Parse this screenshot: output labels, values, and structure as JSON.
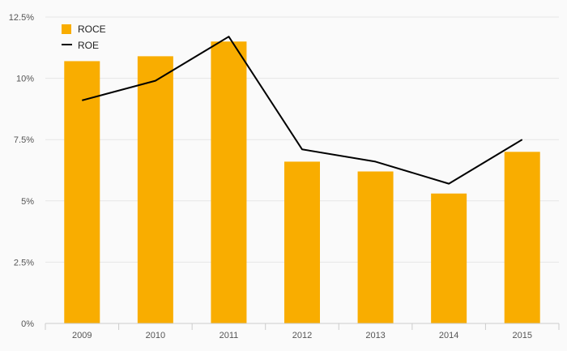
{
  "chart_data": {
    "type": "bar",
    "categories": [
      "2009",
      "2010",
      "2011",
      "2012",
      "2013",
      "2014",
      "2015"
    ],
    "series": [
      {
        "name": "ROCE",
        "kind": "bar",
        "color": "#f9ad00",
        "values": [
          10.7,
          10.9,
          11.5,
          6.6,
          6.2,
          5.3,
          7.0
        ]
      },
      {
        "name": "ROE",
        "kind": "line",
        "color": "#000000",
        "values": [
          9.1,
          9.9,
          11.7,
          7.1,
          6.6,
          5.7,
          7.5
        ]
      }
    ],
    "ylim": [
      0,
      12.5
    ],
    "y_ticks": [
      "0%",
      "2.5%",
      "5%",
      "7.5%",
      "10%",
      "12.5%"
    ],
    "y_tick_values": [
      0,
      2.5,
      5,
      7.5,
      10,
      12.5
    ],
    "grid": true,
    "legend": "top-left",
    "title": "",
    "xlabel": "",
    "ylabel": ""
  }
}
